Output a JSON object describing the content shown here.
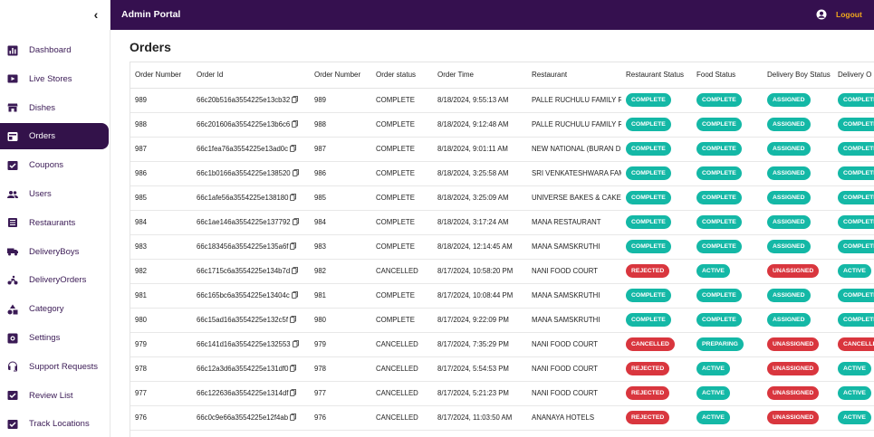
{
  "header": {
    "title": "Admin Portal",
    "logout_label": "Logout"
  },
  "sidebar": {
    "collapse_glyph": "‹",
    "items": [
      {
        "label": "Dashboard",
        "icon": "chart-icon"
      },
      {
        "label": "Live Stores",
        "icon": "live-icon"
      },
      {
        "label": "Dishes",
        "icon": "store-icon"
      },
      {
        "label": "Orders",
        "icon": "orders-icon",
        "active": true
      },
      {
        "label": "Coupons",
        "icon": "coupon-icon"
      },
      {
        "label": "Users",
        "icon": "users-icon"
      },
      {
        "label": "Restaurants",
        "icon": "list-icon"
      },
      {
        "label": "DeliveryBoys",
        "icon": "truck-icon"
      },
      {
        "label": "DeliveryOrders",
        "icon": "bike-icon"
      },
      {
        "label": "Category",
        "icon": "category-icon"
      },
      {
        "label": "Settings",
        "icon": "settings-icon"
      },
      {
        "label": "Support Requests",
        "icon": "support-icon"
      },
      {
        "label": "Review List",
        "icon": "review-icon"
      },
      {
        "label": "Track Locations",
        "icon": "track-icon"
      }
    ]
  },
  "main": {
    "title": "Orders",
    "columns": [
      "Order Number",
      "Order Id",
      "Order Number",
      "Order status",
      "Order Time",
      "Restaurant",
      "Restaurant Status",
      "Food Status",
      "Delivery Boy Status",
      "Delivery O"
    ],
    "rows": [
      {
        "num": "989",
        "id": "66c20b516a3554225e13cb32",
        "num2": "989",
        "status": "COMPLETE",
        "time": "8/18/2024, 9:55:13 AM",
        "restaurant": "PALLE RUCHULU FAMILY RES",
        "rest_status": "COMPLETE",
        "food_status": "COMPLETE",
        "boy_status": "ASSIGNED",
        "del_status": "COMPLETE"
      },
      {
        "num": "988",
        "id": "66c201606a3554225e13b6c6",
        "num2": "988",
        "status": "COMPLETE",
        "time": "8/18/2024, 9:12:48 AM",
        "restaurant": "PALLE RUCHULU FAMILY RES",
        "rest_status": "COMPLETE",
        "food_status": "COMPLETE",
        "boy_status": "ASSIGNED",
        "del_status": "COMPLETE"
      },
      {
        "num": "987",
        "id": "66c1fea76a3554225e13ad0c",
        "num2": "987",
        "status": "COMPLETE",
        "time": "8/18/2024, 9:01:11 AM",
        "restaurant": "NEW NATIONAL (BURAN DHABA)",
        "rest_status": "COMPLETE",
        "food_status": "COMPLETE",
        "boy_status": "ASSIGNED",
        "del_status": "COMPLETE"
      },
      {
        "num": "986",
        "id": "66c1b0166a3554225e138520",
        "num2": "986",
        "status": "COMPLETE",
        "time": "8/18/2024, 3:25:58 AM",
        "restaurant": "SRI VENKATESHWARA FAMILY",
        "rest_status": "COMPLETE",
        "food_status": "COMPLETE",
        "boy_status": "ASSIGNED",
        "del_status": "COMPLETE"
      },
      {
        "num": "985",
        "id": "66c1afe56a3554225e138180",
        "num2": "985",
        "status": "COMPLETE",
        "time": "8/18/2024, 3:25:09 AM",
        "restaurant": "UNIVERSE BAKES & CAKES",
        "rest_status": "COMPLETE",
        "food_status": "COMPLETE",
        "boy_status": "ASSIGNED",
        "del_status": "COMPLETE"
      },
      {
        "num": "984",
        "id": "66c1ae146a3554225e137792",
        "num2": "984",
        "status": "COMPLETE",
        "time": "8/18/2024, 3:17:24 AM",
        "restaurant": "MANA RESTAURANT",
        "rest_status": "COMPLETE",
        "food_status": "COMPLETE",
        "boy_status": "ASSIGNED",
        "del_status": "COMPLETE"
      },
      {
        "num": "983",
        "id": "66c183456a3554225e135a6f",
        "num2": "983",
        "status": "COMPLETE",
        "time": "8/18/2024, 12:14:45 AM",
        "restaurant": "MANA SAMSKRUTHI",
        "rest_status": "COMPLETE",
        "food_status": "COMPLETE",
        "boy_status": "ASSIGNED",
        "del_status": "COMPLETE"
      },
      {
        "num": "982",
        "id": "66c1715c6a3554225e134b7d",
        "num2": "982",
        "status": "CANCELLED",
        "time": "8/17/2024, 10:58:20 PM",
        "restaurant": "NANI FOOD COURT",
        "rest_status": "REJECTED",
        "food_status": "ACTIVE",
        "boy_status": "UNASSIGNED",
        "del_status": "ACTIVE"
      },
      {
        "num": "981",
        "id": "66c165bc6a3554225e13404c",
        "num2": "981",
        "status": "COMPLETE",
        "time": "8/17/2024, 10:08:44 PM",
        "restaurant": "MANA SAMSKRUTHI",
        "rest_status": "COMPLETE",
        "food_status": "COMPLETE",
        "boy_status": "ASSIGNED",
        "del_status": "COMPLETE"
      },
      {
        "num": "980",
        "id": "66c15ad16a3554225e132c5f",
        "num2": "980",
        "status": "COMPLETE",
        "time": "8/17/2024, 9:22:09 PM",
        "restaurant": "MANA SAMSKRUTHI",
        "rest_status": "COMPLETE",
        "food_status": "COMPLETE",
        "boy_status": "ASSIGNED",
        "del_status": "COMPLETE"
      },
      {
        "num": "979",
        "id": "66c141d16a3554225e132553",
        "num2": "979",
        "status": "CANCELLED",
        "time": "8/17/2024, 7:35:29 PM",
        "restaurant": "NANI FOOD COURT",
        "rest_status": "CANCELLED",
        "food_status": "PREPARING",
        "boy_status": "UNASSIGNED",
        "del_status": "CANCELLED"
      },
      {
        "num": "978",
        "id": "66c12a3d6a3554225e131df0",
        "num2": "978",
        "status": "CANCELLED",
        "time": "8/17/2024, 5:54:53 PM",
        "restaurant": "NANI FOOD COURT",
        "rest_status": "REJECTED",
        "food_status": "ACTIVE",
        "boy_status": "UNASSIGNED",
        "del_status": "ACTIVE"
      },
      {
        "num": "977",
        "id": "66c122636a3554225e1314df",
        "num2": "977",
        "status": "CANCELLED",
        "time": "8/17/2024, 5:21:23 PM",
        "restaurant": "NANI FOOD COURT",
        "rest_status": "REJECTED",
        "food_status": "ACTIVE",
        "boy_status": "UNASSIGNED",
        "del_status": "ACTIVE"
      },
      {
        "num": "976",
        "id": "66c0c9e66a3554225e12f4ab",
        "num2": "976",
        "status": "CANCELLED",
        "time": "8/17/2024, 11:03:50 AM",
        "restaurant": "ANANAYA HOTELS",
        "rest_status": "REJECTED",
        "food_status": "ACTIVE",
        "boy_status": "UNASSIGNED",
        "del_status": "ACTIVE"
      }
    ]
  },
  "colors": {
    "header_bg": "#35104f",
    "accent": "#33124a",
    "logout": "#f2a91c",
    "badge_green": "#14b8a6",
    "badge_red": "#d9363e"
  }
}
